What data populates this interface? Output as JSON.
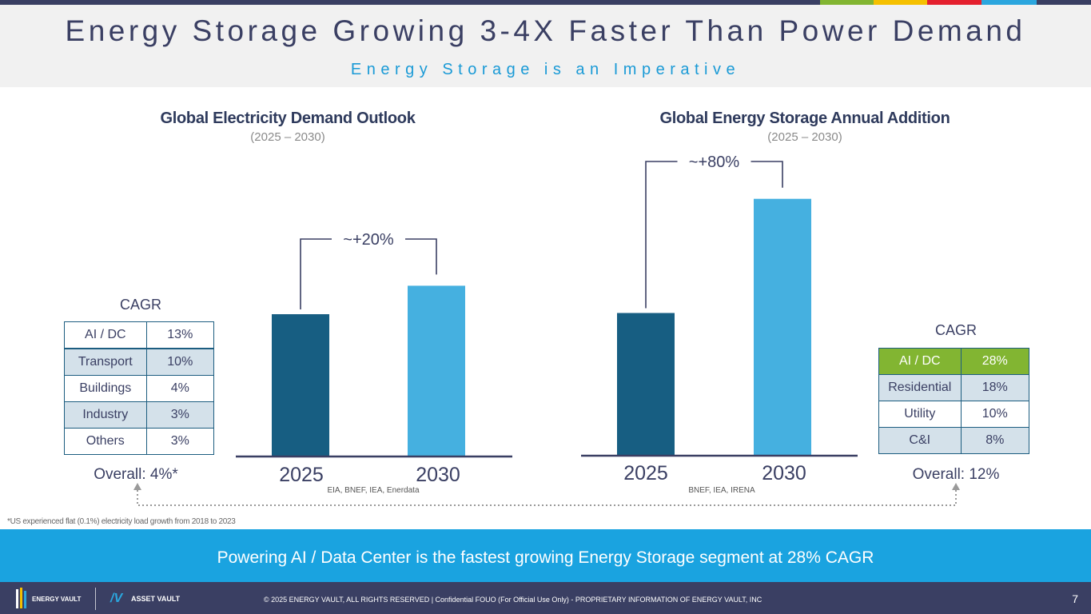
{
  "header": {
    "title": "Energy Storage Growing 3-4X Faster Than Power Demand",
    "subtitle": "Energy Storage is an Imperative"
  },
  "colors": {
    "navy": "#3a3f63",
    "bar_2025": "#175e82",
    "bar_2030": "#45b0e0",
    "accent_green": "#82b532",
    "banner_blue": "#1aa3e0",
    "stripes": [
      "#82b532",
      "#f5c000",
      "#e4202e",
      "#2ba6de"
    ]
  },
  "chart_data": [
    {
      "type": "bar",
      "title": "Global Electricity Demand Outlook",
      "subtitle": "(2025 – 2030)",
      "categories": [
        "2025",
        "2030"
      ],
      "values": [
        100,
        120
      ],
      "ylim": [
        0,
        190
      ],
      "annotation": "~+20%",
      "source": "EIA, BNEF, IEA, Enerdata"
    },
    {
      "type": "bar",
      "title": "Global Energy Storage Annual Addition",
      "subtitle": "(2025 – 2030)",
      "categories": [
        "2025",
        "2030"
      ],
      "values": [
        100,
        180
      ],
      "ylim": [
        0,
        190
      ],
      "annotation": "~+80%",
      "source": "BNEF, IEA, IRENA"
    }
  ],
  "left_table": {
    "label": "CAGR",
    "rows": [
      {
        "segment": "AI / DC",
        "value": "13%"
      },
      {
        "segment": "Transport",
        "value": "10%"
      },
      {
        "segment": "Buildings",
        "value": "4%"
      },
      {
        "segment": "Industry",
        "value": "3%"
      },
      {
        "segment": "Others",
        "value": "3%"
      }
    ],
    "overall": "Overall: 4%*"
  },
  "right_table": {
    "label": "CAGR",
    "rows": [
      {
        "segment": "AI / DC",
        "value": "28%"
      },
      {
        "segment": "Residential",
        "value": "18%"
      },
      {
        "segment": "Utility",
        "value": "10%"
      },
      {
        "segment": "C&I",
        "value": "8%"
      }
    ],
    "overall": "Overall: 12%"
  },
  "footnote": "*US experienced flat (0.1%) electricity load growth from 2018 to 2023",
  "banner": "Powering AI / Data Center is the fastest growing Energy Storage segment at 28% CAGR",
  "footer": {
    "copyright": "© 2025 ENERGY VAULT, ALL RIGHTS RESERVED  |  Confidential FOUO (For Official Use Only) - PROPRIETARY INFORMATION OF ENERGY VAULT, INC",
    "page": "7",
    "logo1": "ENERGY VAULT",
    "logo2": "ASSET VAULT"
  }
}
